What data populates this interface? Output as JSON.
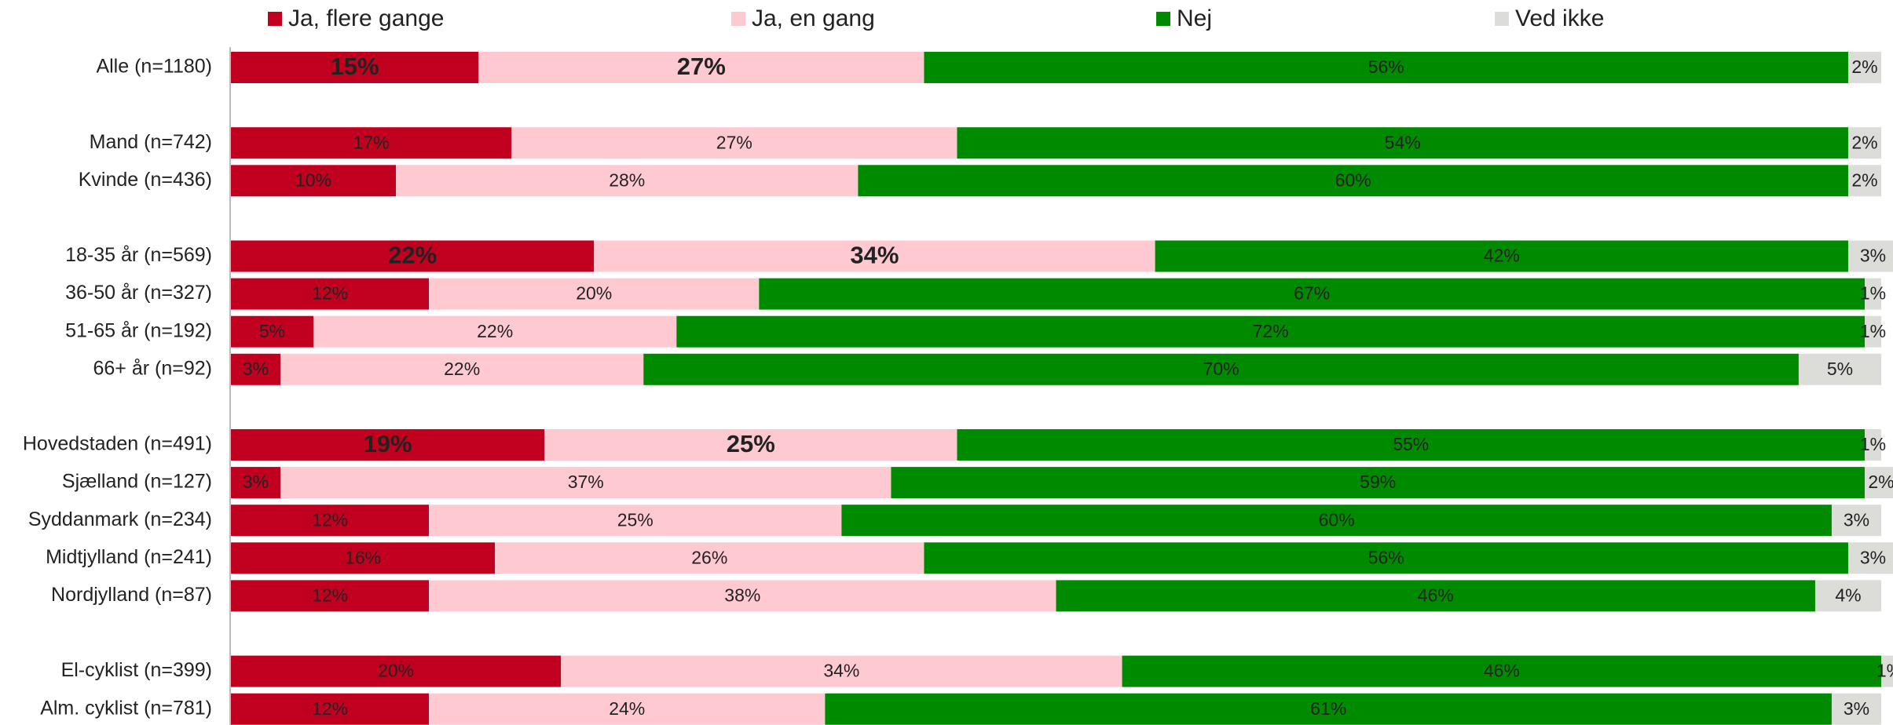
{
  "chart_data": {
    "type": "stacked-bar-horizontal",
    "categories": [
      "Alle (n=1180)",
      null,
      "Mand (n=742)",
      "Kvinde (n=436)",
      null,
      "18-35 år (n=569)",
      "36-50 år  (n=327)",
      "51-65 år  (n=192)",
      "66+ år (n=92)",
      null,
      "Hovedstaden (n=491)",
      "Sjælland (n=127)",
      "Syddanmark (n=234)",
      "Midtjylland (n=241)",
      "Nordjylland (n=87)",
      null,
      "El-cyklist (n=399)",
      "Alm. cyklist (n=781)"
    ],
    "series": [
      {
        "name": "Ja, flere gange",
        "color": "#c0001e",
        "label_color": "#ffffff",
        "values": [
          15,
          null,
          17,
          10,
          null,
          22,
          12,
          5,
          3,
          null,
          19,
          3,
          12,
          16,
          12,
          null,
          20,
          12
        ],
        "value_labels": [
          "15%",
          null,
          "17%",
          "10%",
          null,
          "22%",
          "12%",
          "5%",
          "3%",
          null,
          "19%",
          "3%",
          "12%",
          "16%",
          "12%",
          null,
          "20%",
          "12%"
        ]
      },
      {
        "name": "Ja, en gang",
        "color": "#ffc9d1",
        "label_color": "#333333",
        "values": [
          27,
          null,
          27,
          28,
          null,
          34,
          20,
          22,
          22,
          null,
          25,
          37,
          25,
          26,
          38,
          null,
          34,
          24
        ],
        "value_labels": [
          "27%",
          null,
          "27%",
          "28%",
          null,
          "34%",
          "20%",
          "22%",
          "22%",
          null,
          "25%",
          "37%",
          "25%",
          "26%",
          "38%",
          null,
          "34%",
          "24%"
        ]
      },
      {
        "name": "Nej",
        "color": "#008a00",
        "label_color": "#333333",
        "values": [
          56,
          null,
          54,
          60,
          null,
          42,
          67,
          72,
          70,
          null,
          55,
          59,
          60,
          56,
          46,
          null,
          46,
          61
        ],
        "value_labels": [
          "56%",
          null,
          "54%",
          "60%",
          null,
          "42%",
          "67%",
          "72%",
          "70%",
          null,
          "55%",
          "59%",
          "60%",
          "56%",
          "46%",
          null,
          "46%",
          "61%"
        ]
      },
      {
        "name": "Ved ikke",
        "color": "#dcdcd8",
        "label_color": "#222222",
        "values": [
          2,
          null,
          2,
          2,
          null,
          3,
          1,
          1,
          5,
          null,
          1,
          2,
          3,
          3,
          4,
          null,
          1,
          3
        ],
        "value_labels": [
          "2%",
          null,
          "2%",
          "2%",
          null,
          "3%",
          "1%",
          "1%",
          "5%",
          null,
          "1%",
          "2%",
          "3%",
          "3%",
          "4%",
          null,
          "1%",
          "3%"
        ]
      }
    ],
    "xlim": [
      0,
      100
    ],
    "emphasized_rows": [
      0,
      5,
      10
    ],
    "legend": "top"
  }
}
